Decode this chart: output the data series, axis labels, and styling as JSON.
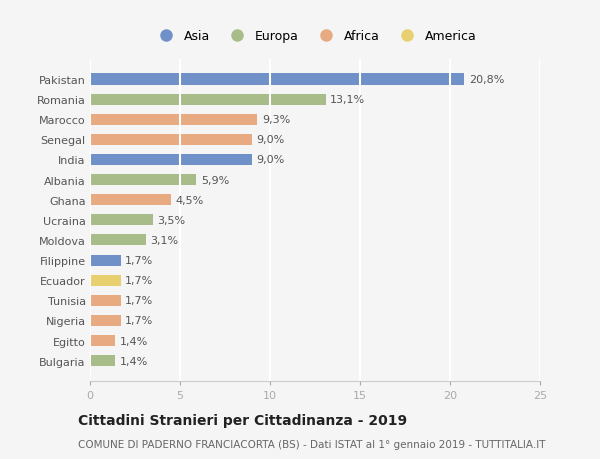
{
  "countries": [
    "Pakistan",
    "Romania",
    "Marocco",
    "Senegal",
    "India",
    "Albania",
    "Ghana",
    "Ucraina",
    "Moldova",
    "Filippine",
    "Ecuador",
    "Tunisia",
    "Nigeria",
    "Egitto",
    "Bulgaria"
  ],
  "values": [
    20.8,
    13.1,
    9.3,
    9.0,
    9.0,
    5.9,
    4.5,
    3.5,
    3.1,
    1.7,
    1.7,
    1.7,
    1.7,
    1.4,
    1.4
  ],
  "labels": [
    "20,8%",
    "13,1%",
    "9,3%",
    "9,0%",
    "9,0%",
    "5,9%",
    "4,5%",
    "3,5%",
    "3,1%",
    "1,7%",
    "1,7%",
    "1,7%",
    "1,7%",
    "1,4%",
    "1,4%"
  ],
  "continents": [
    "Asia",
    "Europa",
    "Africa",
    "Africa",
    "Asia",
    "Europa",
    "Africa",
    "Europa",
    "Europa",
    "Asia",
    "America",
    "Africa",
    "Africa",
    "Africa",
    "Europa"
  ],
  "colors": {
    "Asia": "#7090c8",
    "Europa": "#a8bc8a",
    "Africa": "#e8aa80",
    "America": "#e8d070"
  },
  "legend_order": [
    "Asia",
    "Europa",
    "Africa",
    "America"
  ],
  "title": "Cittadini Stranieri per Cittadinanza - 2019",
  "subtitle": "COMUNE DI PADERNO FRANCIACORTA (BS) - Dati ISTAT al 1° gennaio 2019 - TUTTITALIA.IT",
  "xlim": [
    0,
    25
  ],
  "xticks": [
    0,
    5,
    10,
    15,
    20,
    25
  ],
  "background_color": "#f5f5f5",
  "grid_color": "#ffffff",
  "bar_height": 0.55,
  "title_fontsize": 10,
  "subtitle_fontsize": 7.5,
  "tick_fontsize": 8,
  "label_fontsize": 8,
  "legend_fontsize": 9
}
